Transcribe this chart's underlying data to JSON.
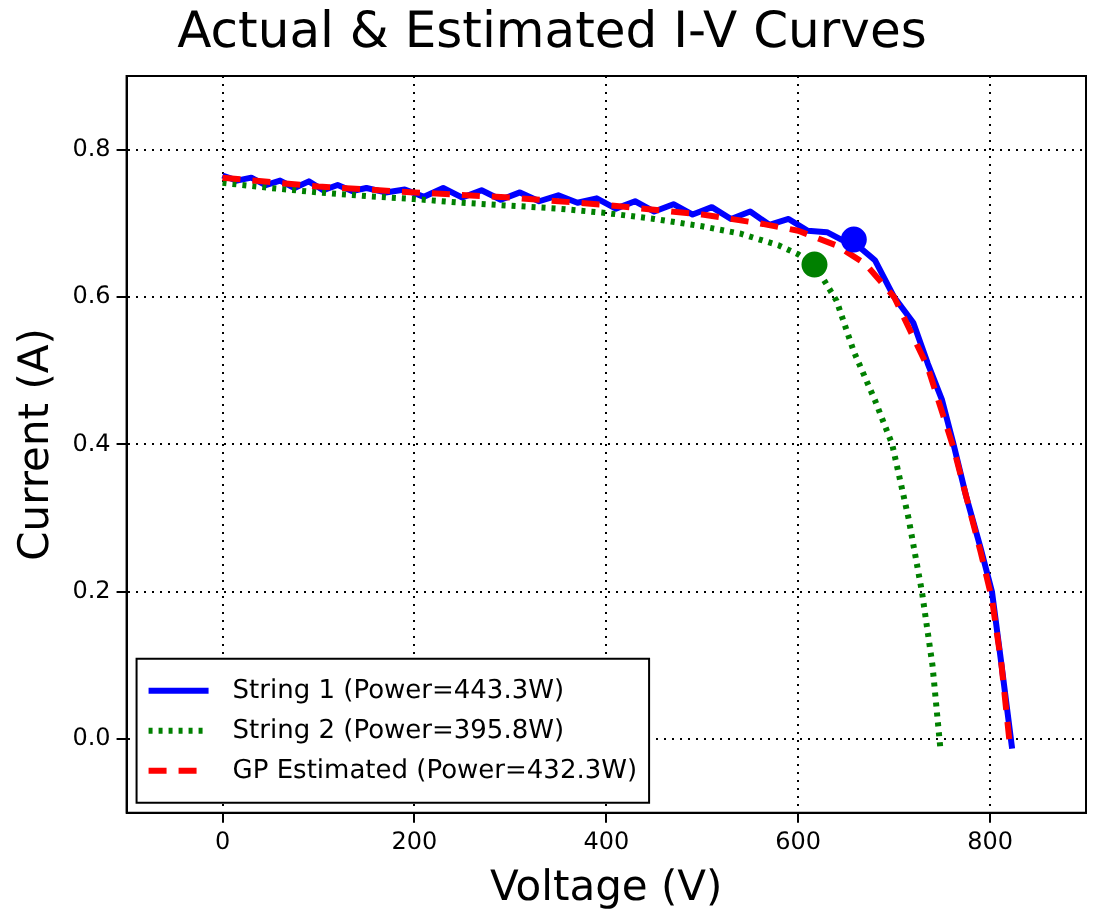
{
  "chart_data": {
    "type": "line",
    "title": "Actual & Estimated I-V Curves",
    "xlabel": "Voltage (V)",
    "ylabel": "Current (A)",
    "xlim": [
      -100,
      900
    ],
    "xticks": [
      0,
      200,
      400,
      600,
      800
    ],
    "ylim": [
      -0.1,
      0.9
    ],
    "yticks": [
      {
        "value": 0.0,
        "label": "0.0"
      },
      0.2,
      0.4,
      0.6,
      0.8
    ],
    "grid": true,
    "legend": "bottom left",
    "marker": "none",
    "series": [
      {
        "name": "String 1 (Power=443.3W)",
        "color": "#0000ff",
        "line_style": "solid",
        "x": [
          0,
          15,
          30,
          45,
          60,
          75,
          90,
          105,
          120,
          135,
          150,
          170,
          190,
          210,
          230,
          250,
          270,
          290,
          310,
          330,
          350,
          370,
          390,
          410,
          430,
          450,
          470,
          490,
          510,
          530,
          550,
          570,
          590,
          610,
          630,
          645,
          660,
          680,
          700,
          720,
          735,
          750,
          762,
          775,
          790,
          802,
          812,
          823
        ],
        "values": [
          0.765,
          0.758,
          0.762,
          0.752,
          0.758,
          0.748,
          0.757,
          0.745,
          0.752,
          0.744,
          0.748,
          0.742,
          0.746,
          0.736,
          0.748,
          0.735,
          0.745,
          0.732,
          0.742,
          0.73,
          0.738,
          0.728,
          0.734,
          0.72,
          0.73,
          0.716,
          0.726,
          0.712,
          0.722,
          0.706,
          0.716,
          0.698,
          0.706,
          0.69,
          0.688,
          0.678,
          0.672,
          0.65,
          0.6,
          0.565,
          0.51,
          0.46,
          0.4,
          0.33,
          0.26,
          0.2,
          0.1,
          -0.013
        ]
      },
      {
        "name": "String 2 (Power=395.8W)",
        "color": "#008000",
        "line_style": "dotted",
        "x": [
          0,
          50,
          100,
          150,
          200,
          250,
          300,
          350,
          400,
          450,
          500,
          540,
          580,
          600,
          617,
          640,
          658,
          680,
          698,
          715,
          729,
          740,
          748
        ],
        "values": [
          0.755,
          0.748,
          0.742,
          0.737,
          0.733,
          0.728,
          0.724,
          0.72,
          0.714,
          0.706,
          0.696,
          0.686,
          0.67,
          0.658,
          0.644,
          0.595,
          0.526,
          0.46,
          0.4,
          0.3,
          0.2,
          0.1,
          -0.01
        ]
      },
      {
        "name": "GP Estimated (Power=432.3W)",
        "color": "#ff0000",
        "line_style": "dashed",
        "x": [
          0,
          100,
          200,
          300,
          400,
          500,
          560,
          600,
          640,
          670,
          700,
          735,
          762,
          790,
          802,
          812,
          820
        ],
        "values": [
          0.762,
          0.75,
          0.742,
          0.735,
          0.725,
          0.712,
          0.7,
          0.69,
          0.67,
          0.645,
          0.6,
          0.505,
          0.395,
          0.255,
          0.19,
          0.1,
          0.0
        ]
      },
      {
        "type": "scatter",
        "marker": "circle",
        "color": "#0000ff",
        "x": [
          658
        ],
        "values": [
          0.678
        ]
      },
      {
        "type": "scatter",
        "marker": "circle",
        "color": "#008000",
        "x": [
          617
        ],
        "values": [
          0.644
        ]
      }
    ]
  }
}
